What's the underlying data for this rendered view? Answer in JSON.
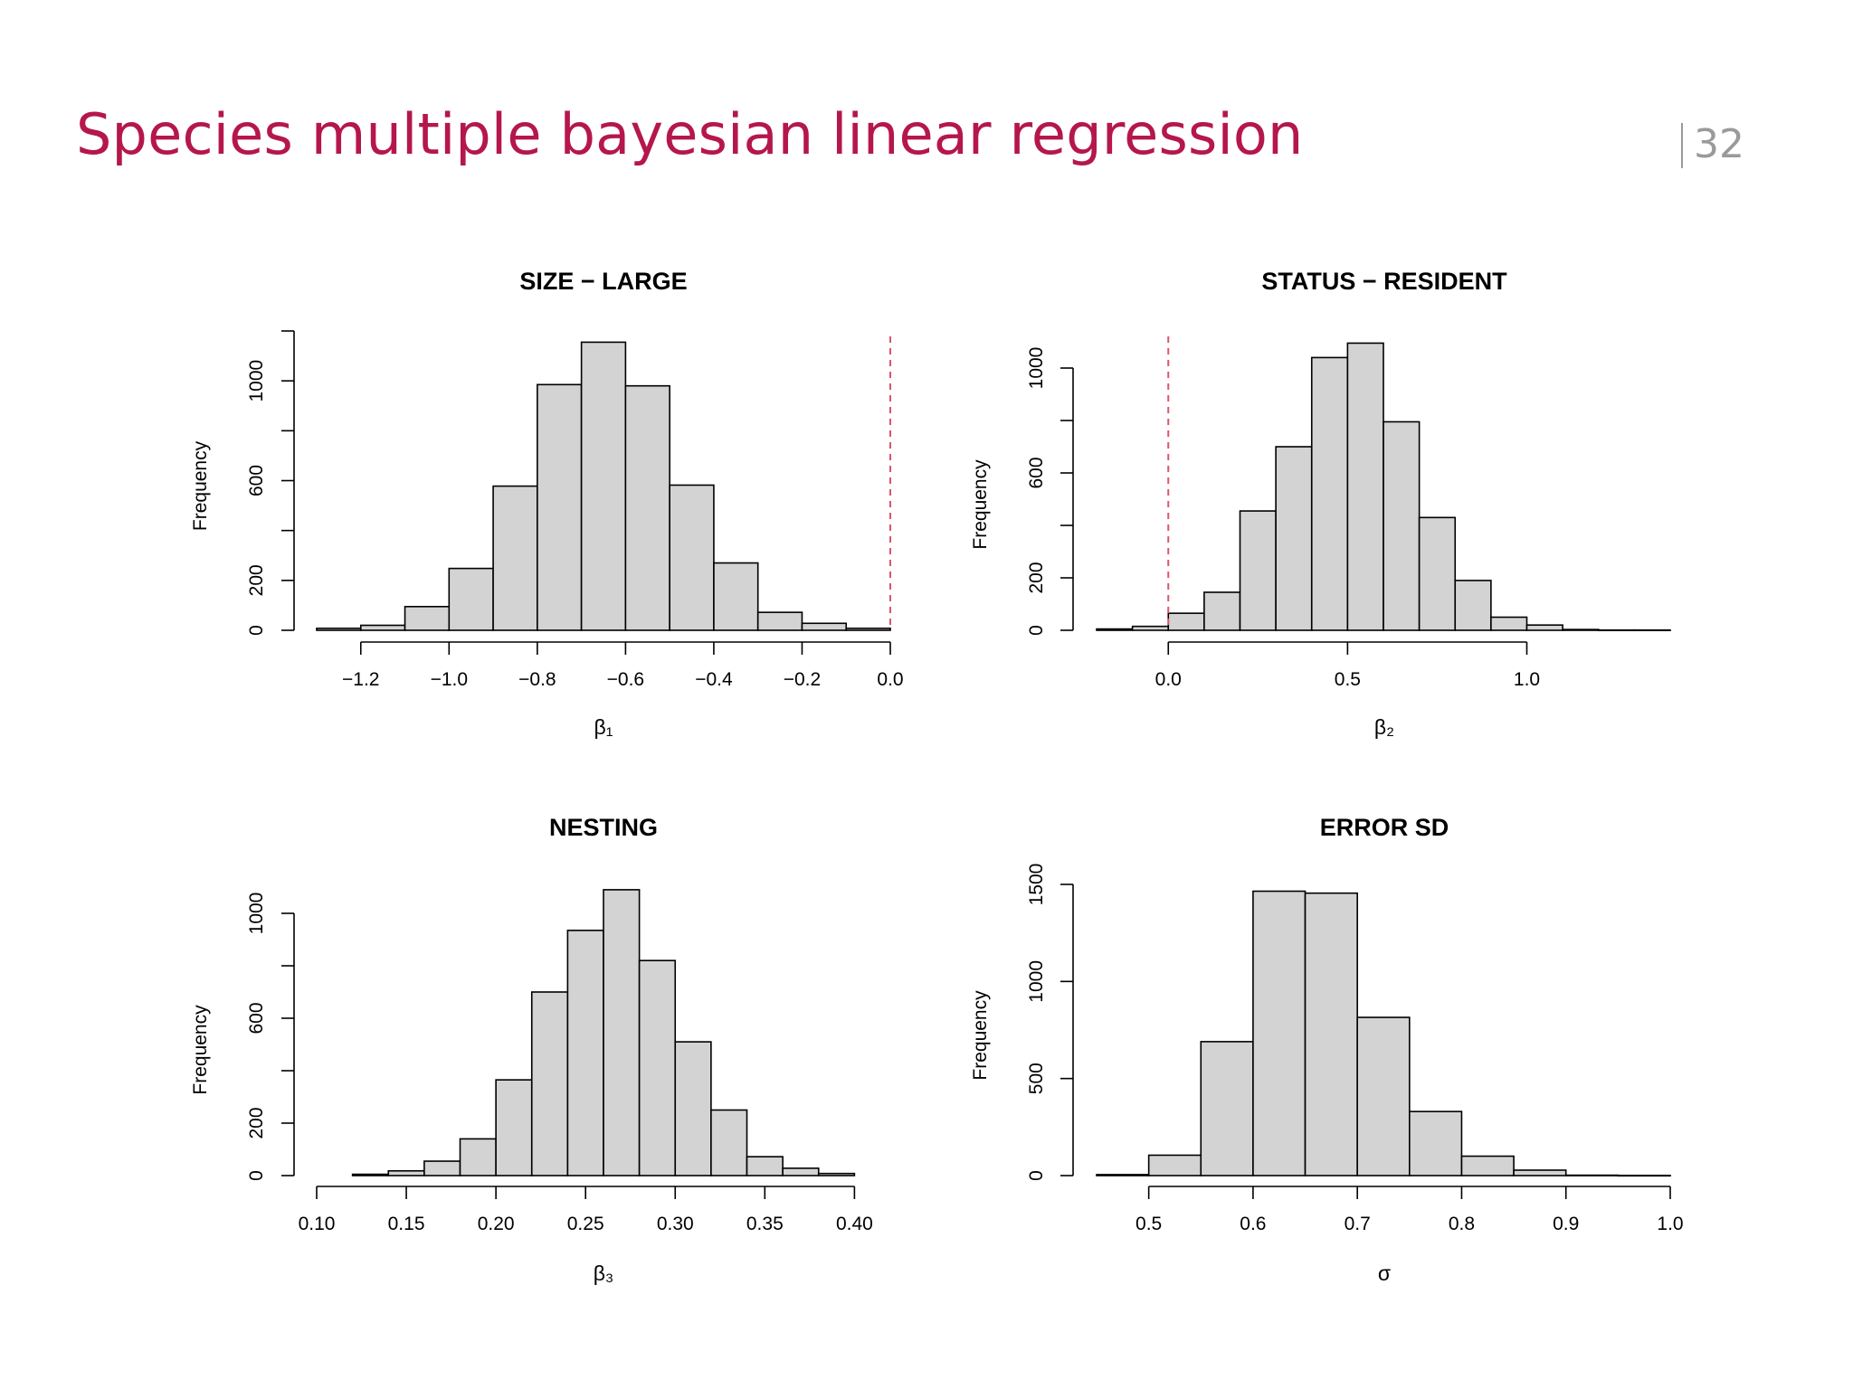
{
  "slide": {
    "title": "Species multiple bayesian linear regression",
    "page_number": "32"
  },
  "colors": {
    "title": "#b5174b",
    "bar_fill": "#d3d3d3",
    "bar_stroke": "#000000",
    "reference_line": "#df536b"
  },
  "chart_data": [
    {
      "type": "bar",
      "title": "SIZE − LARGE",
      "xlabel": "β₁",
      "ylabel": "Frequency",
      "xlim": [
        -1.3,
        0.0
      ],
      "ylim": [
        0,
        1200
      ],
      "bin_width": 0.1,
      "bins": [
        {
          "x0": -1.3,
          "x1": -1.2,
          "count": 8
        },
        {
          "x0": -1.2,
          "x1": -1.1,
          "count": 20
        },
        {
          "x0": -1.1,
          "x1": -1.0,
          "count": 95
        },
        {
          "x0": -1.0,
          "x1": -0.9,
          "count": 248
        },
        {
          "x0": -0.9,
          "x1": -0.8,
          "count": 578
        },
        {
          "x0": -0.8,
          "x1": -0.7,
          "count": 985
        },
        {
          "x0": -0.7,
          "x1": -0.6,
          "count": 1155
        },
        {
          "x0": -0.6,
          "x1": -0.5,
          "count": 980
        },
        {
          "x0": -0.5,
          "x1": -0.4,
          "count": 582
        },
        {
          "x0": -0.4,
          "x1": -0.3,
          "count": 270
        },
        {
          "x0": -0.3,
          "x1": -0.2,
          "count": 72
        },
        {
          "x0": -0.2,
          "x1": -0.1,
          "count": 28
        },
        {
          "x0": -0.1,
          "x1": 0.0,
          "count": 8
        }
      ],
      "x_ticks": [
        -1.2,
        -1.0,
        -0.8,
        -0.6,
        -0.4,
        -0.2,
        0.0
      ],
      "x_tick_labels": [
        "−1.2",
        "−1.0",
        "−0.8",
        "−0.6",
        "−0.4",
        "−0.2",
        "0.0"
      ],
      "y_ticks": [
        0,
        200,
        400,
        600,
        800,
        1000,
        1200
      ],
      "y_tick_labels": [
        "0",
        "200",
        "",
        "600",
        "",
        "1000",
        ""
      ],
      "y_axis_top": 1200,
      "reference_line_x": 0.0
    },
    {
      "type": "bar",
      "title": "STATUS − RESIDENT",
      "xlabel": "β₂",
      "ylabel": "Frequency",
      "xlim": [
        -0.2,
        1.4
      ],
      "ylim": [
        0,
        1100
      ],
      "bin_width": 0.1,
      "bins": [
        {
          "x0": -0.2,
          "x1": -0.1,
          "count": 5
        },
        {
          "x0": -0.1,
          "x1": 0.0,
          "count": 15
        },
        {
          "x0": 0.0,
          "x1": 0.1,
          "count": 65
        },
        {
          "x0": 0.1,
          "x1": 0.2,
          "count": 145
        },
        {
          "x0": 0.2,
          "x1": 0.3,
          "count": 455
        },
        {
          "x0": 0.3,
          "x1": 0.4,
          "count": 700
        },
        {
          "x0": 0.4,
          "x1": 0.5,
          "count": 1040
        },
        {
          "x0": 0.5,
          "x1": 0.6,
          "count": 1095
        },
        {
          "x0": 0.6,
          "x1": 0.7,
          "count": 795
        },
        {
          "x0": 0.7,
          "x1": 0.8,
          "count": 430
        },
        {
          "x0": 0.8,
          "x1": 0.9,
          "count": 190
        },
        {
          "x0": 0.9,
          "x1": 1.0,
          "count": 50
        },
        {
          "x0": 1.0,
          "x1": 1.1,
          "count": 20
        },
        {
          "x0": 1.1,
          "x1": 1.2,
          "count": 3
        },
        {
          "x0": 1.2,
          "x1": 1.3,
          "count": 1
        },
        {
          "x0": 1.3,
          "x1": 1.4,
          "count": 1
        }
      ],
      "x_ticks": [
        0.0,
        0.5,
        1.0
      ],
      "x_tick_labels": [
        "0.0",
        "0.5",
        "1.0"
      ],
      "y_ticks": [
        0,
        200,
        400,
        600,
        800,
        1000
      ],
      "y_tick_labels": [
        "0",
        "200",
        "",
        "600",
        "",
        "1000"
      ],
      "y_axis_top": 1000,
      "reference_line_x": 0.0
    },
    {
      "type": "bar",
      "title": "NESTING",
      "xlabel": "β₃",
      "ylabel": "Frequency",
      "xlim": [
        0.1,
        0.42
      ],
      "ylim": [
        0,
        1100
      ],
      "bin_width": 0.02,
      "bins": [
        {
          "x0": 0.12,
          "x1": 0.14,
          "count": 5
        },
        {
          "x0": 0.14,
          "x1": 0.16,
          "count": 18
        },
        {
          "x0": 0.16,
          "x1": 0.18,
          "count": 55
        },
        {
          "x0": 0.18,
          "x1": 0.2,
          "count": 140
        },
        {
          "x0": 0.2,
          "x1": 0.22,
          "count": 365
        },
        {
          "x0": 0.22,
          "x1": 0.24,
          "count": 700
        },
        {
          "x0": 0.24,
          "x1": 0.26,
          "count": 935
        },
        {
          "x0": 0.26,
          "x1": 0.28,
          "count": 1090
        },
        {
          "x0": 0.28,
          "x1": 0.3,
          "count": 820
        },
        {
          "x0": 0.3,
          "x1": 0.32,
          "count": 510
        },
        {
          "x0": 0.32,
          "x1": 0.34,
          "count": 250
        },
        {
          "x0": 0.34,
          "x1": 0.36,
          "count": 72
        },
        {
          "x0": 0.36,
          "x1": 0.38,
          "count": 28
        },
        {
          "x0": 0.38,
          "x1": 0.4,
          "count": 8
        }
      ],
      "x_ticks": [
        0.1,
        0.15,
        0.2,
        0.25,
        0.3,
        0.35,
        0.4
      ],
      "x_tick_labels": [
        "0.10",
        "0.15",
        "0.20",
        "0.25",
        "0.30",
        "0.35",
        "0.40"
      ],
      "y_ticks": [
        0,
        200,
        400,
        600,
        800,
        1000
      ],
      "y_tick_labels": [
        "0",
        "200",
        "",
        "600",
        "",
        "1000"
      ],
      "y_axis_top": 1000,
      "reference_line_x": null
    },
    {
      "type": "bar",
      "title": "ERROR SD",
      "xlabel": "σ",
      "ylabel": "Frequency",
      "xlim": [
        0.45,
        1.0
      ],
      "ylim": [
        0,
        1500
      ],
      "bin_width": 0.05,
      "bins": [
        {
          "x0": 0.45,
          "x1": 0.5,
          "count": 5
        },
        {
          "x0": 0.5,
          "x1": 0.55,
          "count": 105
        },
        {
          "x0": 0.55,
          "x1": 0.6,
          "count": 690
        },
        {
          "x0": 0.6,
          "x1": 0.65,
          "count": 1465
        },
        {
          "x0": 0.65,
          "x1": 0.7,
          "count": 1455
        },
        {
          "x0": 0.7,
          "x1": 0.75,
          "count": 815
        },
        {
          "x0": 0.75,
          "x1": 0.8,
          "count": 330
        },
        {
          "x0": 0.8,
          "x1": 0.85,
          "count": 100
        },
        {
          "x0": 0.85,
          "x1": 0.9,
          "count": 28
        },
        {
          "x0": 0.9,
          "x1": 0.95,
          "count": 2
        },
        {
          "x0": 0.95,
          "x1": 1.0,
          "count": 1
        }
      ],
      "x_ticks": [
        0.5,
        0.6,
        0.7,
        0.8,
        0.9,
        1.0
      ],
      "x_tick_labels": [
        "0.5",
        "0.6",
        "0.7",
        "0.8",
        "0.9",
        "1.0"
      ],
      "y_ticks": [
        0,
        500,
        1000,
        1500
      ],
      "y_tick_labels": [
        "0",
        "500",
        "1000",
        "1500"
      ],
      "y_axis_top": 1500,
      "reference_line_x": null
    }
  ]
}
